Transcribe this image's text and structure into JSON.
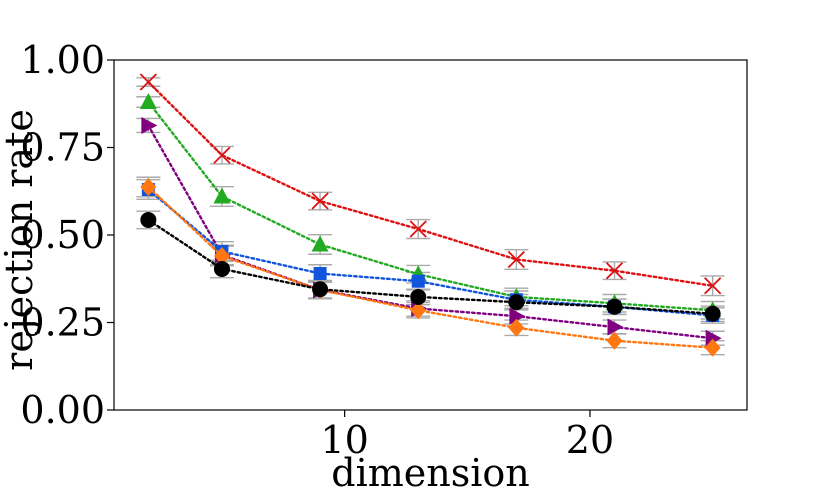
{
  "chart_data": {
    "type": "line",
    "title": "",
    "xlabel": "dimension",
    "ylabel": "rejection rate",
    "xlim": [
      0.6,
      26.4
    ],
    "ylim": [
      0.0,
      1.0
    ],
    "xticks": [
      10,
      20
    ],
    "xtick_labels": [
      "10",
      "20"
    ],
    "yticks": [
      0.0,
      0.25,
      0.5,
      0.75,
      1.0
    ],
    "ytick_labels": [
      "0.00",
      "0.25",
      "0.50",
      "0.75",
      "1.00"
    ],
    "grid": false,
    "legend": null,
    "x": [
      2,
      5,
      9,
      13,
      17,
      21,
      25
    ],
    "series": [
      {
        "name": "red-x",
        "color": "#dd1111",
        "marker": "x",
        "values": [
          0.937,
          0.728,
          0.597,
          0.517,
          0.43,
          0.398,
          0.355
        ],
        "errors": [
          0.012,
          0.025,
          0.025,
          0.027,
          0.028,
          0.025,
          0.028
        ]
      },
      {
        "name": "green-triangle",
        "color": "#22aa22",
        "marker": "triangle",
        "values": [
          0.88,
          0.61,
          0.473,
          0.388,
          0.323,
          0.305,
          0.285
        ],
        "errors": [
          0.015,
          0.028,
          0.028,
          0.025,
          0.025,
          0.025,
          0.025
        ]
      },
      {
        "name": "purple-right",
        "color": "#800080",
        "marker": "tri-right",
        "values": [
          0.813,
          0.443,
          0.343,
          0.29,
          0.268,
          0.237,
          0.205
        ],
        "errors": [
          0.02,
          0.028,
          0.025,
          0.022,
          0.022,
          0.02,
          0.02
        ]
      },
      {
        "name": "blue-square",
        "color": "#1155dd",
        "marker": "square",
        "values": [
          0.63,
          0.453,
          0.39,
          0.368,
          0.315,
          0.295,
          0.27
        ],
        "errors": [
          0.028,
          0.028,
          0.025,
          0.025,
          0.025,
          0.022,
          0.022
        ]
      },
      {
        "name": "orange-diamond",
        "color": "#ff7711",
        "marker": "diamond",
        "values": [
          0.637,
          0.44,
          0.343,
          0.285,
          0.235,
          0.198,
          0.178
        ],
        "errors": [
          0.028,
          0.028,
          0.025,
          0.022,
          0.022,
          0.02,
          0.02
        ]
      },
      {
        "name": "black-circle",
        "color": "#000000",
        "marker": "circle",
        "values": [
          0.543,
          0.403,
          0.345,
          0.323,
          0.308,
          0.295,
          0.275
        ],
        "errors": [
          0.025,
          0.025,
          0.025,
          0.022,
          0.022,
          0.022,
          0.022
        ]
      }
    ]
  }
}
